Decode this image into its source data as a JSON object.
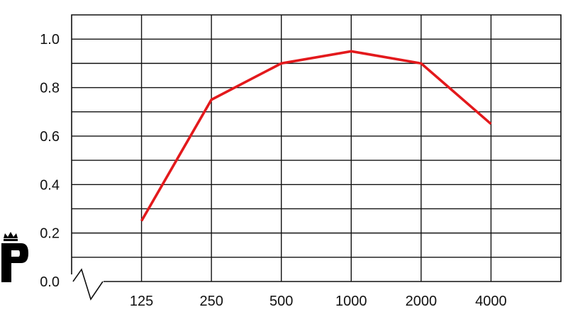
{
  "chart_data": {
    "type": "line",
    "title": "",
    "xlabel": "",
    "ylabel": "",
    "categories": [
      "125",
      "250",
      "500",
      "1000",
      "2000",
      "4000"
    ],
    "series": [
      {
        "values": [
          0.25,
          0.75,
          0.9,
          0.95,
          0.9,
          0.65
        ],
        "color": "#e3191c"
      }
    ],
    "ylim": [
      0.0,
      1.1
    ],
    "y_ticks": [
      "0.0",
      "0.2",
      "0.4",
      "0.6",
      "0.8",
      "1.0"
    ],
    "grid": true,
    "axis_break": true
  },
  "logo": {
    "icon": "crowned-p-logo-icon"
  }
}
